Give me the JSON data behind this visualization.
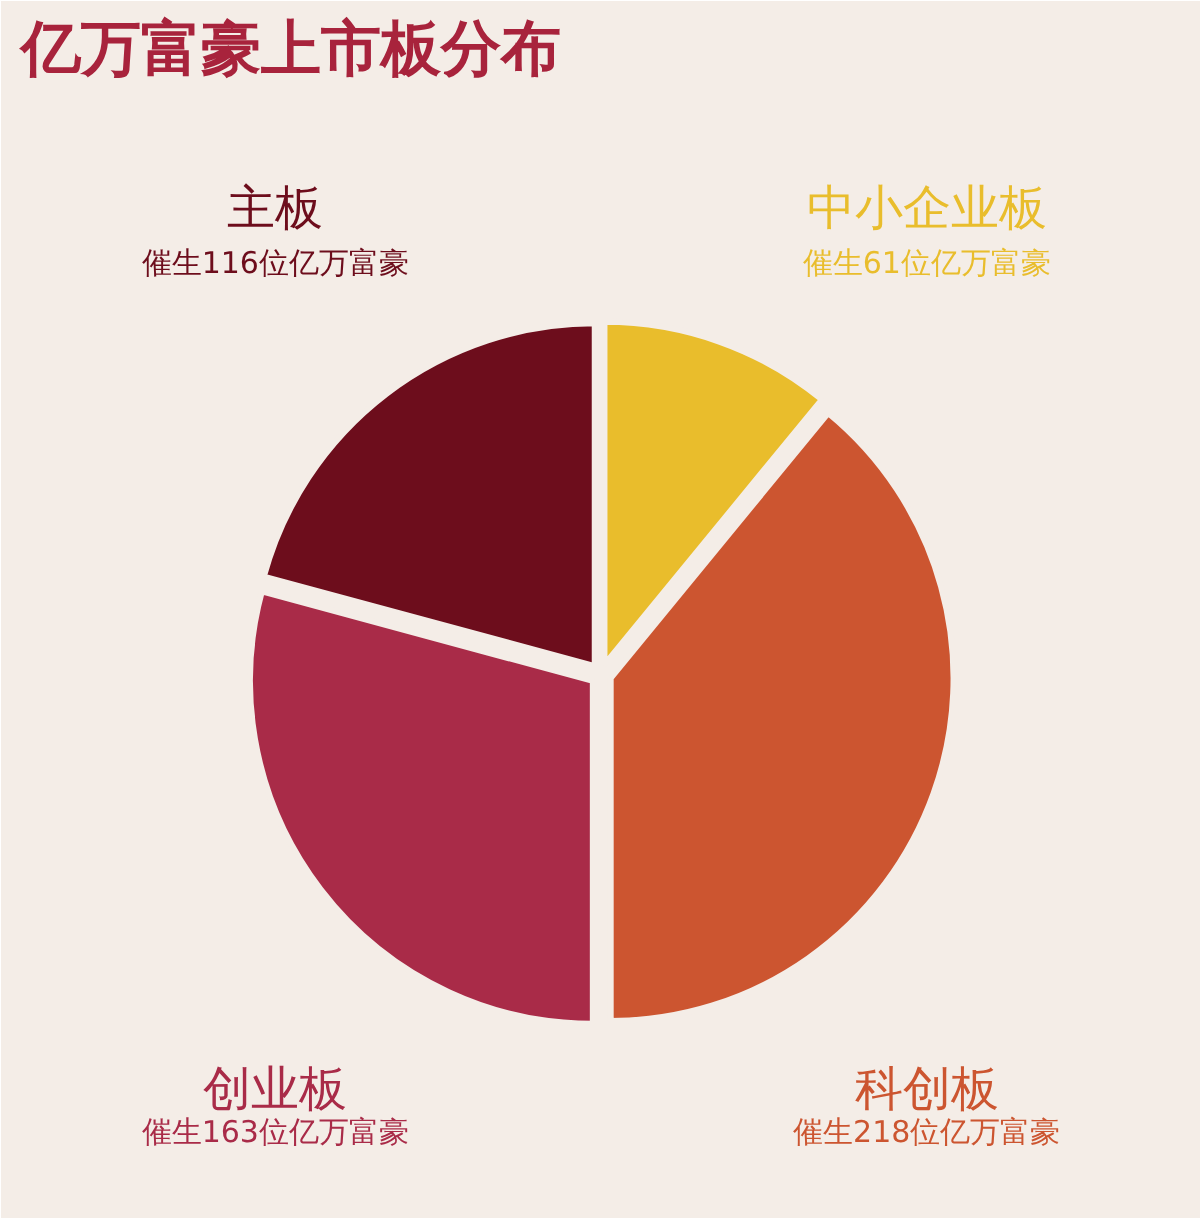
{
  "chart_data": {
    "type": "pie",
    "title": "亿万富豪上市板分布",
    "categories": [
      "中小企业板",
      "科创板",
      "创业板",
      "主板"
    ],
    "values": [
      61,
      218,
      163,
      116
    ],
    "colors": [
      "#e9bd2c",
      "#cc5530",
      "#a92b48",
      "#6d0d1c"
    ],
    "value_labels": [
      "催生61位亿万富豪",
      "催生218位亿万富豪",
      "催生163位亿万富豪",
      "催生116位亿万富豪"
    ]
  }
}
